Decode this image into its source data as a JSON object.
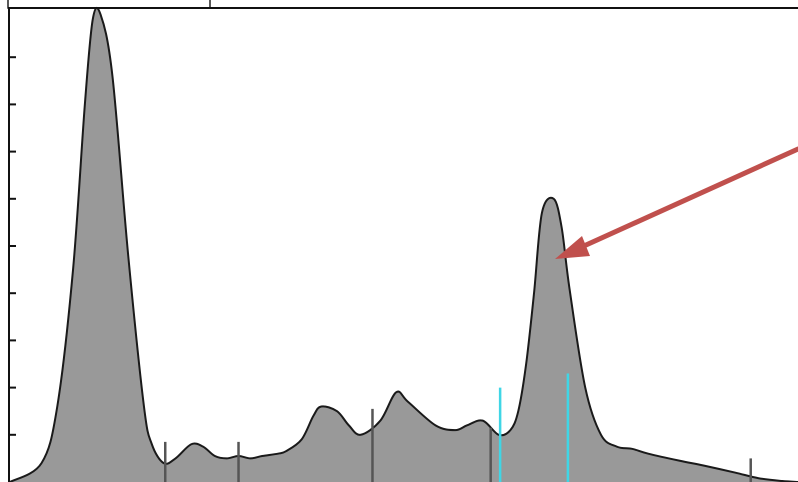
{
  "chart_data": {
    "type": "area",
    "title": "",
    "xlabel": "",
    "ylabel": "",
    "xlim": [
      0,
      1000
    ],
    "ylim": [
      0,
      10
    ],
    "grid": false,
    "y_ticks": [
      1,
      2,
      3,
      4,
      5,
      6,
      7,
      8,
      9
    ],
    "series": [
      {
        "x": [
          0,
          40,
          60,
          80,
          95,
          105,
          115,
          130,
          150,
          170,
          180,
          195,
          210,
          230,
          245,
          260,
          275,
          290,
          305,
          320,
          340,
          350,
          370,
          385,
          395,
          415,
          430,
          445,
          470,
          490,
          505,
          540,
          565,
          580,
          600,
          620,
          635,
          645,
          655,
          665,
          675,
          690,
          700,
          710,
          730,
          750,
          770,
          790,
          810,
          850,
          880,
          920,
          950,
          980,
          1000
        ],
        "y": [
          0.0,
          0.4,
          1.6,
          4.5,
          8.0,
          9.8,
          9.9,
          8.6,
          4.8,
          1.6,
          0.8,
          0.4,
          0.5,
          0.8,
          0.75,
          0.55,
          0.5,
          0.55,
          0.5,
          0.55,
          0.6,
          0.65,
          0.9,
          1.4,
          1.6,
          1.5,
          1.2,
          1.0,
          1.3,
          1.9,
          1.7,
          1.2,
          1.1,
          1.2,
          1.3,
          1.0,
          1.1,
          1.5,
          2.5,
          4.0,
          5.7,
          6.0,
          5.4,
          4.1,
          2.0,
          1.0,
          0.75,
          0.7,
          0.6,
          0.45,
          0.35,
          0.2,
          0.08,
          0.02,
          0.0
        ]
      }
    ],
    "marker_lines": [
      {
        "x": 197,
        "height": 0.85,
        "color": "#555555"
      },
      {
        "x": 290,
        "height": 0.85,
        "color": "#555555"
      },
      {
        "x": 460,
        "height": 1.55,
        "color": "#555555"
      },
      {
        "x": 610,
        "height": 1.15,
        "color": "#555555"
      },
      {
        "x": 940,
        "height": 0.5,
        "color": "#555555"
      },
      {
        "x": 622,
        "height": 2.0,
        "color": "#3fd6e6"
      },
      {
        "x": 708,
        "height": 2.3,
        "color": "#3fd6e6"
      }
    ],
    "colors": {
      "fill": "#999999",
      "outline": "#1a1a1a",
      "arrow": "#c0504d"
    }
  }
}
